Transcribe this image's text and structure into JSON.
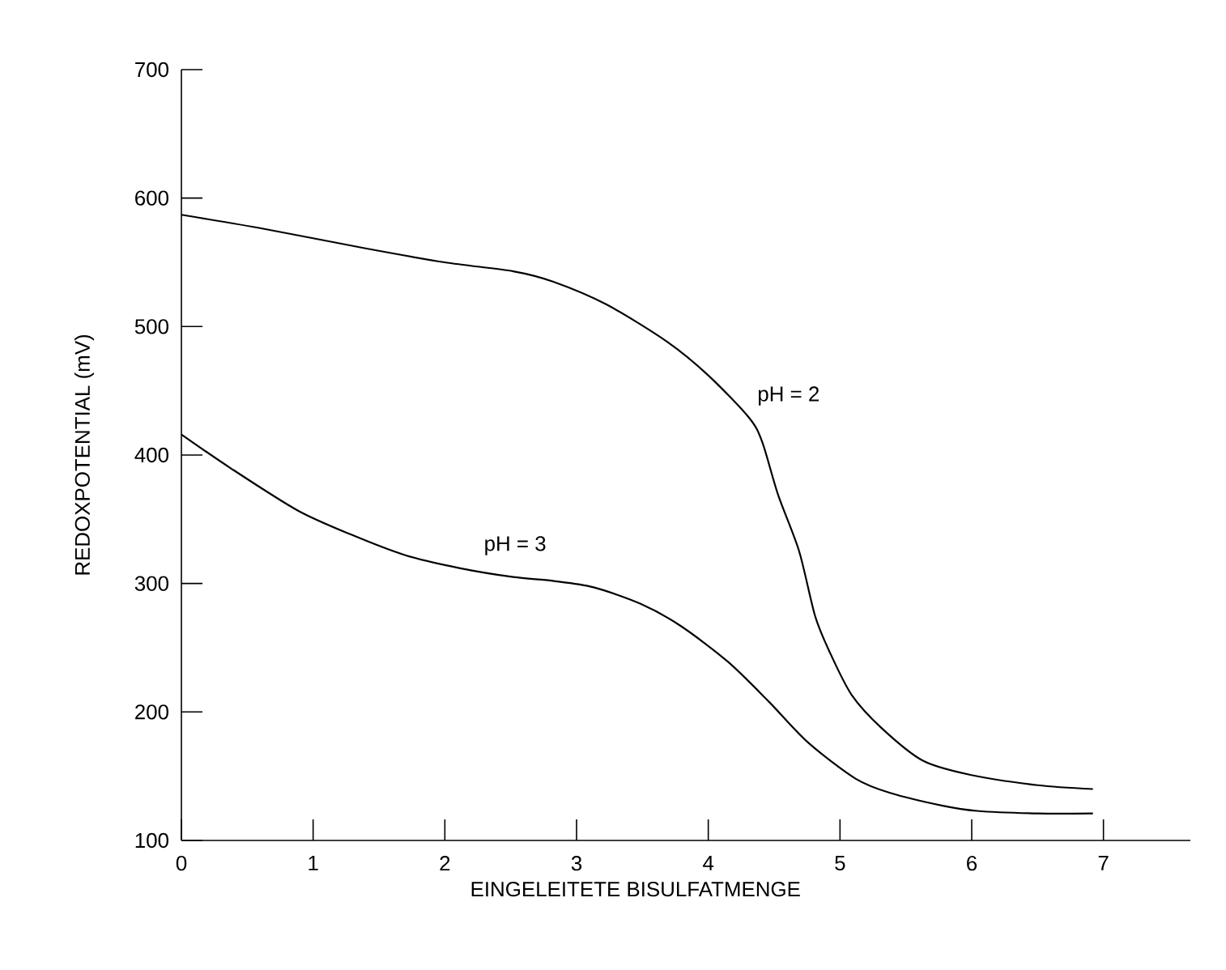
{
  "chart_data": {
    "type": "line",
    "xlabel": "EINGELEITETE BISULFATMENGE",
    "ylabel": "REDOXPOTENTIAL (mV)",
    "xlim": [
      0,
      7.66
    ],
    "ylim": [
      100,
      700
    ],
    "xticks": [
      0,
      1,
      2,
      3,
      4,
      5,
      6,
      7
    ],
    "yticks": [
      100,
      200,
      300,
      400,
      500,
      600,
      700
    ],
    "grid": false,
    "marker": "none",
    "line_style": "solid",
    "series": [
      {
        "name": "pH = 2",
        "color": "#000000",
        "x": [
          0,
          0.63,
          1.39,
          2.0,
          2.52,
          2.82,
          3.23,
          3.69,
          4.0,
          4.31,
          4.41,
          4.53,
          4.69,
          4.81,
          4.92,
          5.09,
          5.32,
          5.63,
          5.99,
          6.5,
          6.92
        ],
        "values": [
          587,
          576,
          561,
          550,
          543,
          535,
          517,
          488,
          462,
          429,
          410,
          369,
          325,
          275,
          247,
          213,
          187,
          162,
          151,
          143,
          140
        ]
      },
      {
        "name": "pH = 3",
        "color": "#000000",
        "x": [
          0,
          0.37,
          0.88,
          1.29,
          1.7,
          2.11,
          2.52,
          2.82,
          3.13,
          3.49,
          3.79,
          4.15,
          4.46,
          4.76,
          5.12,
          5.38,
          5.78,
          6.04,
          6.5,
          6.92
        ],
        "values": [
          416,
          390,
          357,
          338,
          322,
          312,
          305,
          302,
          297,
          284,
          267,
          239,
          208,
          176,
          148,
          137,
          127,
          123,
          121,
          121
        ]
      }
    ]
  }
}
